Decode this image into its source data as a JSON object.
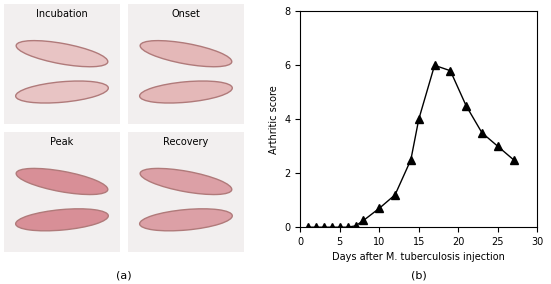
{
  "panel_a": {
    "panel_label": "(a)",
    "images": [
      "Incubation",
      "Onset",
      "Peak",
      "Recovery"
    ]
  },
  "chart_data": {
    "type": "line",
    "panel_label": "(b)",
    "x_label": "Days after M. tuberculosis injection",
    "y_label": "Arthritic score",
    "x": [
      1,
      2,
      3,
      4,
      5,
      6,
      7,
      8,
      10,
      12,
      14,
      15,
      17,
      19,
      21,
      23,
      25,
      27
    ],
    "values": [
      0,
      0,
      0,
      0,
      0,
      0,
      0.05,
      0.25,
      0.7,
      1.2,
      2.5,
      4.0,
      6.0,
      5.8,
      4.5,
      3.5,
      3.0,
      2.5
    ],
    "color": "#000000",
    "marker": "triangle",
    "line_style": "solid",
    "xlim": [
      0,
      30
    ],
    "xticks": [
      0,
      5,
      10,
      15,
      20,
      25,
      30
    ],
    "ylim": [
      0,
      8
    ],
    "yticks": [
      0,
      2,
      4,
      6,
      8
    ],
    "grid": false
  }
}
